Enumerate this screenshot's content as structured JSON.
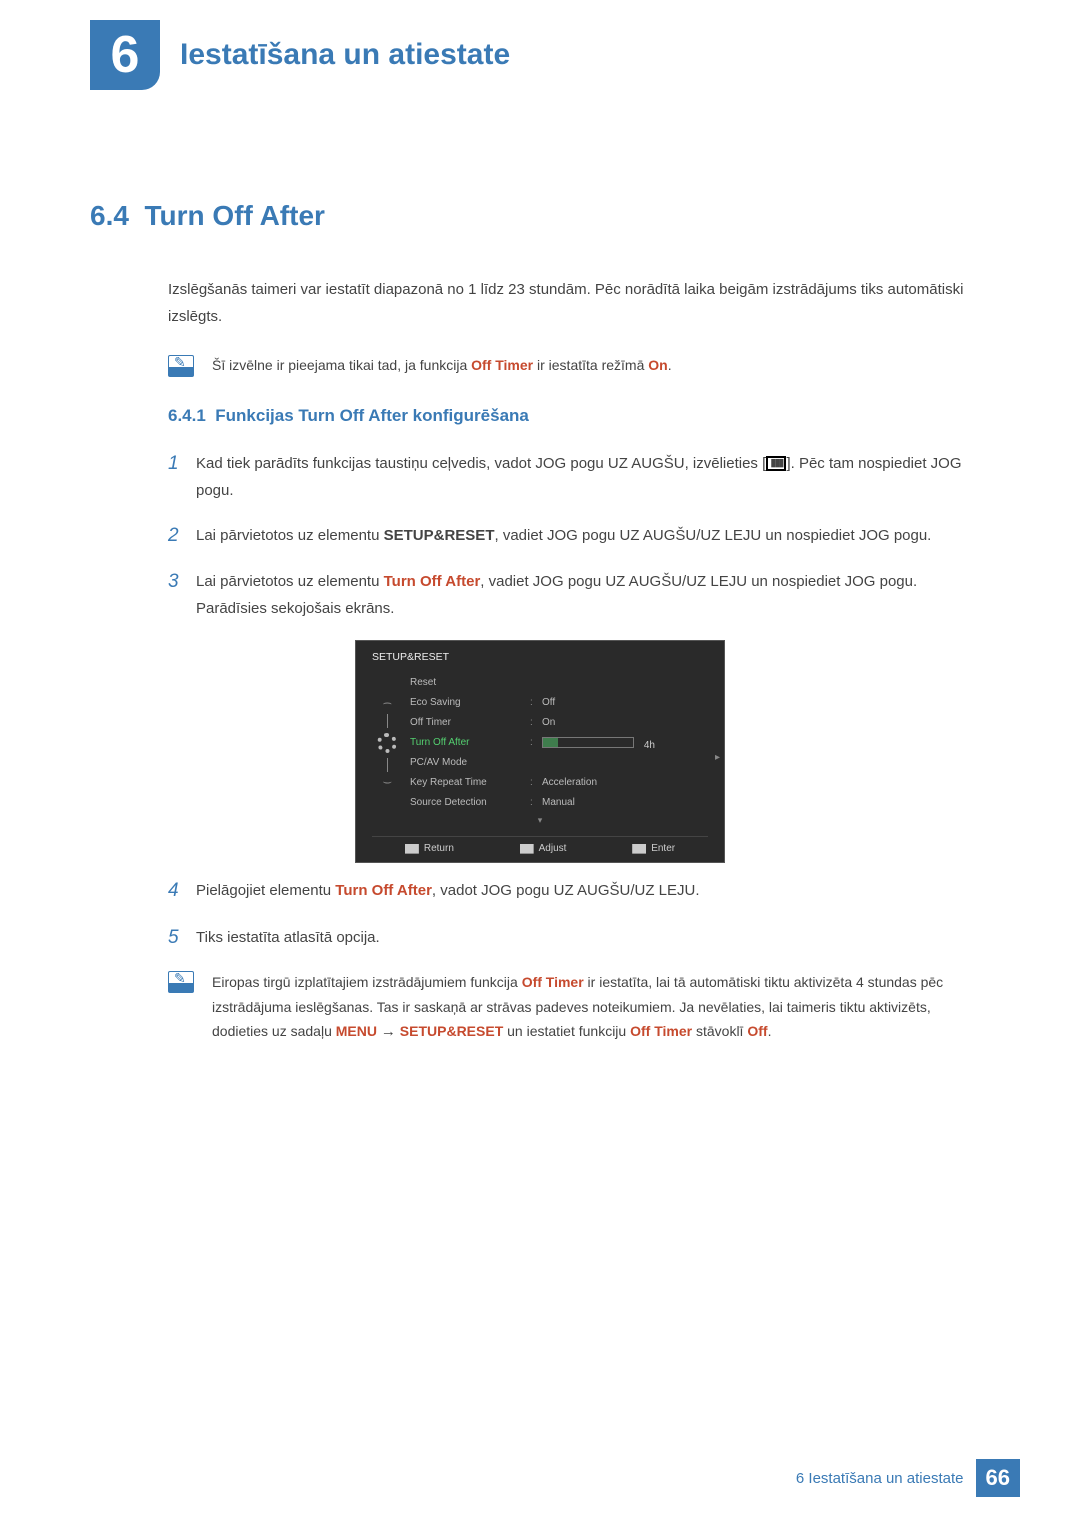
{
  "chapter": {
    "number": "6",
    "title": "Iestatīšana un atiestate"
  },
  "section": {
    "number": "6.4",
    "title": "Turn Off After"
  },
  "intro": "Izslēgšanās taimeri var iestatīt diapazonā no 1 līdz 23 stundām. Pēc norādītā laika beigām izstrādājums tiks automātiski izslēgts.",
  "note1": {
    "pre": "Šī izvēlne ir pieejama tikai tad, ja funkcija ",
    "fn": "Off Timer",
    "mid": " ir iestatīta režīmā ",
    "on": "On",
    "post": "."
  },
  "subsection": {
    "number": "6.4.1",
    "title": "Funkcijas Turn Off After konfigurēšana"
  },
  "steps": {
    "s1a": "Kad tiek parādīts funkcijas taustiņu ceļvedis, vadot JOG pogu UZ AUGŠU, izvēlieties [",
    "s1b": "]. Pēc tam nospiediet JOG pogu.",
    "s2a": "Lai pārvietotos uz elementu ",
    "s2b": "SETUP&RESET",
    "s2c": ", vadiet JOG pogu UZ AUGŠU/UZ LEJU un nospiediet JOG pogu.",
    "s3a": "Lai pārvietotos uz elementu ",
    "s3b": "Turn Off After",
    "s3c": ", vadiet JOG pogu UZ AUGŠU/UZ LEJU un nospiediet JOG pogu. Parādīsies sekojošais ekrāns.",
    "s4a": "Pielāgojiet elementu ",
    "s4b": "Turn Off After",
    "s4c": ", vadot JOG pogu UZ AUGŠU/UZ LEJU.",
    "s5": "Tiks iestatīta atlasītā opcija."
  },
  "osd": {
    "title": "SETUP&RESET",
    "rows": [
      {
        "label": "Reset",
        "value": ""
      },
      {
        "label": "Eco Saving",
        "value": "Off"
      },
      {
        "label": "Off Timer",
        "value": "On"
      },
      {
        "label": "Turn Off After",
        "value": "4h",
        "selected": true,
        "slider_pct": 17
      },
      {
        "label": "PC/AV Mode",
        "value": ""
      },
      {
        "label": "Key Repeat Time",
        "value": "Acceleration"
      },
      {
        "label": "Source Detection",
        "value": "Manual"
      }
    ],
    "footer": {
      "return": "Return",
      "adjust": "Adjust",
      "enter": "Enter"
    },
    "colors": {
      "bg": "#2a2a2a",
      "text": "#cccccc",
      "selected": "#54d070"
    }
  },
  "note2": {
    "l1a": "Eiropas tirgū izplatītajiem izstrādājumiem funkcija ",
    "l1b": "Off Timer",
    "l1c": " ir iestatīta, lai tā automātiski tiktu aktivizēta 4 stundas pēc izstrādājuma ieslēgšanas. Tas ir saskaņā ar strāvas padeves noteikumiem. Ja nevēlaties, lai taimeris tiktu aktivizēts, dodieties uz sadaļu ",
    "menu": "MENU",
    "arrow": "→",
    "sr": "SETUP&RESET",
    "l2": " un iestatiet funkciju ",
    "ot": "Off Timer",
    "l3": " stāvoklī ",
    "off": "Off",
    "l4": "."
  },
  "footer": {
    "text": "6 Iestatīšana un atiestate",
    "page": "66"
  }
}
